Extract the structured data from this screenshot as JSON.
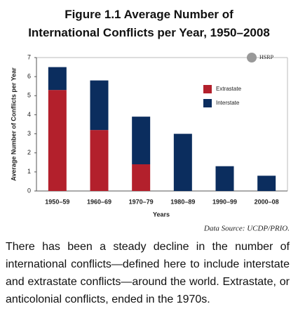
{
  "chart_data": {
    "type": "stacked_bar",
    "title": "Figure 1.1 Average Number of International Conflicts per Year, 1950–2008",
    "xlabel": "Years",
    "ylabel": "Average Number of Conflicts per Year",
    "categories": [
      "1950–59",
      "1960–69",
      "1970–79",
      "1980–89",
      "1990–99",
      "2000–08"
    ],
    "series": [
      {
        "name": "Extrastate",
        "color": "#b3202c",
        "values": [
          5.3,
          3.2,
          1.4,
          0,
          0,
          0
        ]
      },
      {
        "name": "Interstate",
        "color": "#0b2d5e",
        "values": [
          1.2,
          2.6,
          2.5,
          3.0,
          1.3,
          0.8
        ]
      }
    ],
    "ylim": [
      0,
      7
    ],
    "yticks": [
      0,
      1,
      2,
      3,
      4,
      5,
      6,
      7
    ],
    "grid": false,
    "logo": "HSRP",
    "source": "Data Source: UCDP/PRIO."
  },
  "caption": "There has been a steady decline in the number of international conflicts—defined here to include interstate and extrastate conflicts—around the world. Extrastate, or anticolonial conflicts, ended in the 1970s."
}
